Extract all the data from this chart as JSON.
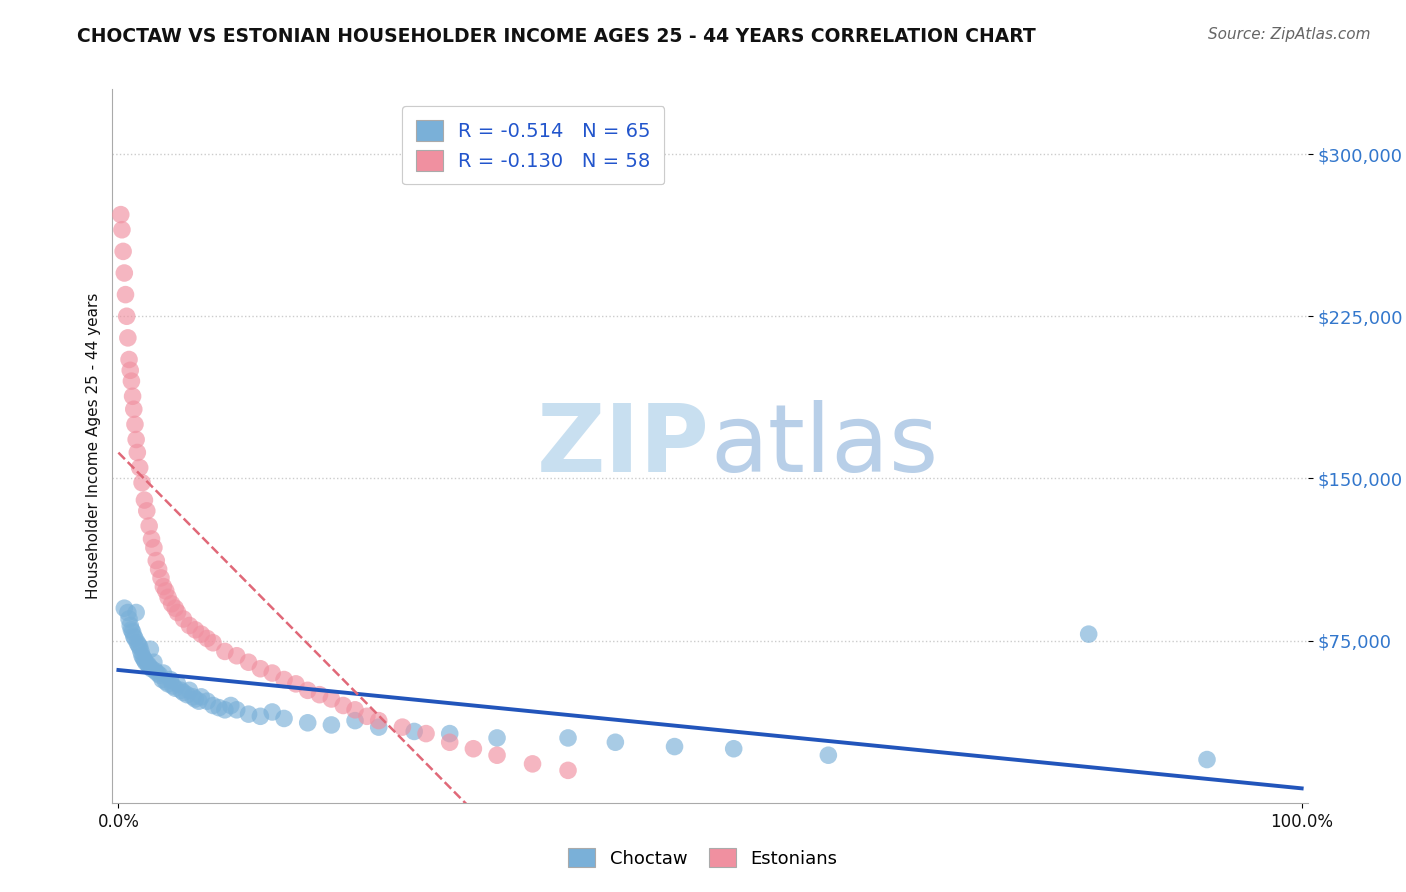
{
  "title": "CHOCTAW VS ESTONIAN HOUSEHOLDER INCOME AGES 25 - 44 YEARS CORRELATION CHART",
  "source": "Source: ZipAtlas.com",
  "ylabel": "Householder Income Ages 25 - 44 years",
  "ytick_labels": [
    "$75,000",
    "$150,000",
    "$225,000",
    "$300,000"
  ],
  "ytick_values": [
    75000,
    150000,
    225000,
    300000
  ],
  "ylim": [
    0,
    330000
  ],
  "xlim": [
    -0.005,
    1.005
  ],
  "legend_entries": [
    {
      "label": "R = -0.514   N = 65",
      "color": "#a8c4e0"
    },
    {
      "label": "R = -0.130   N = 58",
      "color": "#f4a0b0"
    }
  ],
  "legend_bottom": [
    "Choctaw",
    "Estonians"
  ],
  "choctaw_color": "#7ab0d8",
  "estonian_color": "#f090a0",
  "trendline_choctaw_color": "#2255bb",
  "trendline_estonian_color": "#e06878",
  "background_color": "#ffffff",
  "grid_color": "#cccccc",
  "title_color": "#111111",
  "axis_label_color": "#111111",
  "ytick_color": "#3377cc",
  "xtick_color": "#111111",
  "watermark_zip_color": "#c8dff0",
  "watermark_atlas_color": "#b8cfe8",
  "choctaw_x": [
    0.005,
    0.008,
    0.009,
    0.01,
    0.011,
    0.012,
    0.013,
    0.014,
    0.015,
    0.016,
    0.017,
    0.018,
    0.019,
    0.02,
    0.021,
    0.022,
    0.023,
    0.025,
    0.026,
    0.027,
    0.028,
    0.03,
    0.031,
    0.033,
    0.035,
    0.037,
    0.038,
    0.04,
    0.042,
    0.044,
    0.046,
    0.048,
    0.05,
    0.053,
    0.055,
    0.058,
    0.06,
    0.063,
    0.065,
    0.068,
    0.07,
    0.075,
    0.08,
    0.085,
    0.09,
    0.095,
    0.1,
    0.11,
    0.12,
    0.13,
    0.14,
    0.16,
    0.18,
    0.2,
    0.22,
    0.25,
    0.28,
    0.32,
    0.38,
    0.42,
    0.47,
    0.52,
    0.6,
    0.82,
    0.92
  ],
  "choctaw_y": [
    90000,
    88000,
    85000,
    82000,
    80000,
    79000,
    77000,
    76000,
    88000,
    74000,
    73000,
    72000,
    70000,
    68000,
    67000,
    66000,
    65000,
    64000,
    63000,
    71000,
    62000,
    65000,
    61000,
    60000,
    59000,
    57000,
    60000,
    56000,
    55000,
    57000,
    54000,
    53000,
    55000,
    52000,
    51000,
    50000,
    52000,
    49000,
    48000,
    47000,
    49000,
    47000,
    45000,
    44000,
    43000,
    45000,
    43000,
    41000,
    40000,
    42000,
    39000,
    37000,
    36000,
    38000,
    35000,
    33000,
    32000,
    30000,
    30000,
    28000,
    26000,
    25000,
    22000,
    78000,
    20000
  ],
  "estonian_x": [
    0.002,
    0.003,
    0.004,
    0.005,
    0.006,
    0.007,
    0.008,
    0.009,
    0.01,
    0.011,
    0.012,
    0.013,
    0.014,
    0.015,
    0.016,
    0.018,
    0.02,
    0.022,
    0.024,
    0.026,
    0.028,
    0.03,
    0.032,
    0.034,
    0.036,
    0.038,
    0.04,
    0.042,
    0.045,
    0.048,
    0.05,
    0.055,
    0.06,
    0.065,
    0.07,
    0.075,
    0.08,
    0.09,
    0.1,
    0.11,
    0.12,
    0.13,
    0.14,
    0.15,
    0.16,
    0.17,
    0.18,
    0.19,
    0.2,
    0.21,
    0.22,
    0.24,
    0.26,
    0.28,
    0.3,
    0.32,
    0.35,
    0.38
  ],
  "estonian_y": [
    272000,
    265000,
    255000,
    245000,
    235000,
    225000,
    215000,
    205000,
    200000,
    195000,
    188000,
    182000,
    175000,
    168000,
    162000,
    155000,
    148000,
    140000,
    135000,
    128000,
    122000,
    118000,
    112000,
    108000,
    104000,
    100000,
    98000,
    95000,
    92000,
    90000,
    88000,
    85000,
    82000,
    80000,
    78000,
    76000,
    74000,
    70000,
    68000,
    65000,
    62000,
    60000,
    57000,
    55000,
    52000,
    50000,
    48000,
    45000,
    43000,
    40000,
    38000,
    35000,
    32000,
    28000,
    25000,
    22000,
    18000,
    15000
  ]
}
